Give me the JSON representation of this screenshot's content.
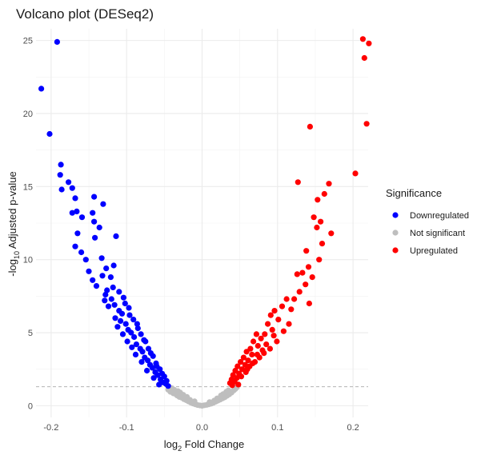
{
  "chart_data": {
    "type": "scatter",
    "title": "Volcano plot (DESeq2)",
    "xlabel": {
      "prefix": "log",
      "sub": "2",
      "suffix": " Fold Change"
    },
    "ylabel": {
      "prefix": "-log",
      "sub": "10",
      "suffix": " Adjusted p-value"
    },
    "xlim": [
      -0.22,
      0.22
    ],
    "ylim": [
      -0.8,
      25.8
    ],
    "x_ticks": [
      -0.2,
      -0.1,
      0.0,
      0.1,
      0.2
    ],
    "x_tick_labels": [
      "-0.2",
      "-0.1",
      "0.0",
      "0.1",
      "0.2"
    ],
    "y_ticks": [
      0,
      5,
      10,
      15,
      20,
      25
    ],
    "y_tick_labels": [
      "0",
      "5",
      "10",
      "15",
      "20",
      "25"
    ],
    "threshold_y": 1.3,
    "grid": true,
    "legend": {
      "title": "Significance",
      "placement": "right",
      "entries": [
        "Downregulated",
        "Not significant",
        "Upregulated"
      ]
    },
    "colors": {
      "Downregulated": "#0000ff",
      "Not significant": "#bebebe",
      "Upregulated": "#ff0000"
    },
    "series": [
      {
        "name": "Downregulated",
        "points": [
          [
            -0.192,
            24.9
          ],
          [
            -0.213,
            21.7
          ],
          [
            -0.202,
            18.6
          ],
          [
            -0.187,
            16.5
          ],
          [
            -0.188,
            15.8
          ],
          [
            -0.177,
            15.3
          ],
          [
            -0.186,
            14.8
          ],
          [
            -0.172,
            14.9
          ],
          [
            -0.168,
            14.2
          ],
          [
            -0.166,
            13.3
          ],
          [
            -0.172,
            13.2
          ],
          [
            -0.159,
            12.9
          ],
          [
            -0.143,
            14.3
          ],
          [
            -0.145,
            13.2
          ],
          [
            -0.143,
            12.6
          ],
          [
            -0.131,
            13.8
          ],
          [
            -0.136,
            12.2
          ],
          [
            -0.142,
            11.5
          ],
          [
            -0.165,
            11.8
          ],
          [
            -0.168,
            10.9
          ],
          [
            -0.16,
            10.5
          ],
          [
            -0.154,
            10.0
          ],
          [
            -0.114,
            11.6
          ],
          [
            -0.117,
            9.6
          ],
          [
            -0.15,
            9.2
          ],
          [
            -0.145,
            8.6
          ],
          [
            -0.132,
            8.9
          ],
          [
            -0.14,
            8.2
          ],
          [
            -0.128,
            7.6
          ],
          [
            -0.12,
            7.3
          ],
          [
            -0.129,
            7.2
          ],
          [
            -0.124,
            6.8
          ],
          [
            -0.116,
            6.9
          ],
          [
            -0.11,
            6.5
          ],
          [
            -0.106,
            6.3
          ],
          [
            -0.115,
            6.0
          ],
          [
            -0.108,
            5.8
          ],
          [
            -0.101,
            5.6
          ],
          [
            -0.112,
            5.4
          ],
          [
            -0.098,
            5.2
          ],
          [
            -0.094,
            5.0
          ],
          [
            -0.105,
            4.9
          ],
          [
            -0.09,
            4.7
          ],
          [
            -0.099,
            4.4
          ],
          [
            -0.087,
            4.2
          ],
          [
            -0.093,
            4.0
          ],
          [
            -0.082,
            3.9
          ],
          [
            -0.079,
            3.7
          ],
          [
            -0.088,
            3.5
          ],
          [
            -0.076,
            3.3
          ],
          [
            -0.072,
            3.1
          ],
          [
            -0.08,
            3.0
          ],
          [
            -0.069,
            2.8
          ],
          [
            -0.066,
            2.6
          ],
          [
            -0.073,
            2.4
          ],
          [
            -0.062,
            2.3
          ],
          [
            -0.059,
            2.1
          ],
          [
            -0.064,
            1.9
          ],
          [
            -0.055,
            1.8
          ],
          [
            -0.052,
            1.6
          ],
          [
            -0.048,
            1.5
          ],
          [
            -0.057,
            1.45
          ],
          [
            -0.045,
            1.35
          ],
          [
            -0.126,
            7.9
          ],
          [
            -0.118,
            8.1
          ],
          [
            -0.102,
            7.0
          ],
          [
            -0.096,
            6.2
          ],
          [
            -0.085,
            5.3
          ],
          [
            -0.075,
            4.4
          ],
          [
            -0.068,
            3.6
          ],
          [
            -0.061,
            2.9
          ],
          [
            -0.053,
            2.2
          ],
          [
            -0.133,
            10.1
          ],
          [
            -0.127,
            9.4
          ],
          [
            -0.121,
            8.8
          ],
          [
            -0.11,
            7.8
          ],
          [
            -0.104,
            7.4
          ],
          [
            -0.097,
            6.7
          ],
          [
            -0.091,
            5.9
          ],
          [
            -0.086,
            5.6
          ],
          [
            -0.081,
            4.9
          ],
          [
            -0.077,
            4.5
          ],
          [
            -0.071,
            3.9
          ],
          [
            -0.065,
            3.4
          ],
          [
            -0.06,
            2.7
          ],
          [
            -0.056,
            2.5
          ],
          [
            -0.05,
            2.0
          ],
          [
            -0.047,
            1.7
          ]
        ]
      },
      {
        "name": "Not significant",
        "points": [
          [
            -0.045,
            1.1
          ],
          [
            -0.042,
            0.95
          ],
          [
            -0.04,
            1.2
          ],
          [
            -0.038,
            0.85
          ],
          [
            -0.035,
            0.8
          ],
          [
            -0.033,
            0.7
          ],
          [
            -0.03,
            0.6
          ],
          [
            -0.027,
            0.55
          ],
          [
            -0.024,
            0.45
          ],
          [
            -0.021,
            0.38
          ],
          [
            -0.018,
            0.3
          ],
          [
            -0.015,
            0.22
          ],
          [
            -0.012,
            0.15
          ],
          [
            -0.009,
            0.1
          ],
          [
            -0.006,
            0.05
          ],
          [
            -0.003,
            0.02
          ],
          [
            0.0,
            0.0
          ],
          [
            0.003,
            0.03
          ],
          [
            0.006,
            0.06
          ],
          [
            0.009,
            0.1
          ],
          [
            0.012,
            0.14
          ],
          [
            0.015,
            0.2
          ],
          [
            0.018,
            0.28
          ],
          [
            0.021,
            0.35
          ],
          [
            0.024,
            0.42
          ],
          [
            0.027,
            0.5
          ],
          [
            0.03,
            0.58
          ],
          [
            0.033,
            0.68
          ],
          [
            0.036,
            0.78
          ],
          [
            0.039,
            0.9
          ],
          [
            0.042,
            1.05
          ],
          [
            0.044,
            1.15
          ],
          [
            -0.037,
            1.1
          ],
          [
            -0.029,
            0.9
          ],
          [
            -0.02,
            0.6
          ],
          [
            0.02,
            0.5
          ],
          [
            0.028,
            0.8
          ],
          [
            0.035,
            1.05
          ],
          [
            -0.025,
            0.75
          ],
          [
            0.025,
            0.7
          ],
          [
            -0.01,
            0.3
          ],
          [
            0.01,
            0.25
          ],
          [
            -0.043,
            1.25
          ],
          [
            0.046,
            1.25
          ],
          [
            -0.032,
            1.0
          ],
          [
            0.032,
            0.95
          ],
          [
            -0.016,
            0.4
          ],
          [
            0.016,
            0.35
          ]
        ]
      },
      {
        "name": "Upregulated",
        "points": [
          [
            0.213,
            25.1
          ],
          [
            0.221,
            24.8
          ],
          [
            0.215,
            23.8
          ],
          [
            0.143,
            19.1
          ],
          [
            0.218,
            19.3
          ],
          [
            0.203,
            15.9
          ],
          [
            0.168,
            15.2
          ],
          [
            0.127,
            15.3
          ],
          [
            0.162,
            14.5
          ],
          [
            0.153,
            14.1
          ],
          [
            0.148,
            12.9
          ],
          [
            0.157,
            12.6
          ],
          [
            0.152,
            12.2
          ],
          [
            0.171,
            11.8
          ],
          [
            0.159,
            11.1
          ],
          [
            0.138,
            10.6
          ],
          [
            0.155,
            10.0
          ],
          [
            0.141,
            9.5
          ],
          [
            0.133,
            9.1
          ],
          [
            0.126,
            9.0
          ],
          [
            0.146,
            8.8
          ],
          [
            0.137,
            8.3
          ],
          [
            0.129,
            7.8
          ],
          [
            0.122,
            7.3
          ],
          [
            0.142,
            7.0
          ],
          [
            0.112,
            7.3
          ],
          [
            0.118,
            6.6
          ],
          [
            0.106,
            6.8
          ],
          [
            0.096,
            6.5
          ],
          [
            0.091,
            6.2
          ],
          [
            0.101,
            5.9
          ],
          [
            0.087,
            5.6
          ],
          [
            0.093,
            5.2
          ],
          [
            0.083,
            4.9
          ],
          [
            0.072,
            4.9
          ],
          [
            0.078,
            4.6
          ],
          [
            0.068,
            4.4
          ],
          [
            0.074,
            4.1
          ],
          [
            0.064,
            3.9
          ],
          [
            0.059,
            3.7
          ],
          [
            0.066,
            3.5
          ],
          [
            0.055,
            3.3
          ],
          [
            0.061,
            3.1
          ],
          [
            0.051,
            3.0
          ],
          [
            0.057,
            2.8
          ],
          [
            0.047,
            2.7
          ],
          [
            0.053,
            2.5
          ],
          [
            0.044,
            2.4
          ],
          [
            0.049,
            2.2
          ],
          [
            0.041,
            2.1
          ],
          [
            0.046,
            1.9
          ],
          [
            0.039,
            1.8
          ],
          [
            0.043,
            1.65
          ],
          [
            0.037,
            1.55
          ],
          [
            0.048,
            1.45
          ],
          [
            0.04,
            1.4
          ],
          [
            0.08,
            3.8
          ],
          [
            0.085,
            4.2
          ],
          [
            0.09,
            3.9
          ],
          [
            0.099,
            4.4
          ],
          [
            0.076,
            3.3
          ],
          [
            0.07,
            3.0
          ],
          [
            0.063,
            2.7
          ],
          [
            0.058,
            2.3
          ],
          [
            0.052,
            2.0
          ],
          [
            0.108,
            5.1
          ],
          [
            0.115,
            5.6
          ],
          [
            0.095,
            4.8
          ],
          [
            0.082,
            3.6
          ],
          [
            0.073,
            3.5
          ],
          [
            0.067,
            2.9
          ],
          [
            0.06,
            2.5
          ]
        ]
      }
    ]
  }
}
